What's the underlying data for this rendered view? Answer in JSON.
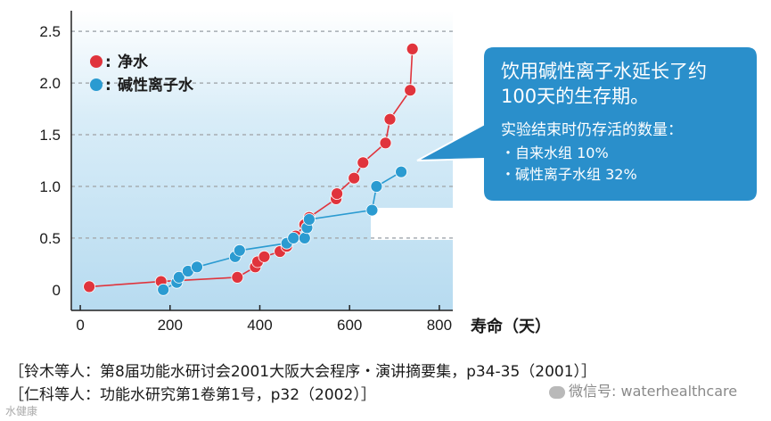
{
  "chart_data": {
    "type": "line",
    "x": {
      "ticks": [
        0,
        200,
        400,
        600,
        800
      ],
      "range": [
        -20,
        830
      ]
    },
    "y": {
      "ticks": [
        0,
        0.5,
        1.0,
        1.5,
        2.0,
        2.5
      ],
      "tick_labels": [
        "0",
        "0.5",
        "1.0",
        "1.5",
        "2.0",
        "2.5"
      ],
      "range": [
        -0.2,
        2.7
      ]
    },
    "xlabel": "寿命（天）",
    "grid": "horizontal-dashed",
    "series": [
      {
        "name": "净水",
        "color": "#e0343c",
        "points": [
          [
            20,
            0.03
          ],
          [
            180,
            0.08
          ],
          [
            350,
            0.12
          ],
          [
            390,
            0.22
          ],
          [
            395,
            0.27
          ],
          [
            410,
            0.32
          ],
          [
            445,
            0.37
          ],
          [
            460,
            0.42
          ],
          [
            480,
            0.52
          ],
          [
            500,
            0.63
          ],
          [
            510,
            0.7
          ],
          [
            570,
            0.88
          ],
          [
            572,
            0.93
          ],
          [
            610,
            1.08
          ],
          [
            630,
            1.23
          ],
          [
            680,
            1.42
          ],
          [
            690,
            1.65
          ],
          [
            735,
            1.93
          ],
          [
            740,
            2.33
          ]
        ]
      },
      {
        "name": "碱性离子水",
        "color": "#2b9bd1",
        "points": [
          [
            185,
            0.0
          ],
          [
            215,
            0.07
          ],
          [
            220,
            0.12
          ],
          [
            240,
            0.18
          ],
          [
            260,
            0.22
          ],
          [
            345,
            0.32
          ],
          [
            355,
            0.38
          ],
          [
            460,
            0.45
          ],
          [
            475,
            0.5
          ],
          [
            500,
            0.5
          ],
          [
            505,
            0.6
          ],
          [
            510,
            0.68
          ],
          [
            650,
            0.77
          ],
          [
            660,
            1.0
          ],
          [
            715,
            1.14
          ]
        ]
      }
    ]
  },
  "callout": {
    "headline_1": "饮用碱性离子水延长了约",
    "headline_2": "100天的生存期。",
    "sub_title": "实验结束时仍存活的数量：",
    "item_1": "・自来水组 10%",
    "item_2": "・碱性离子水组 32%",
    "bg_color": "#2a8fcb"
  },
  "references": {
    "line_1": "［铃木等人：第8届功能水研讨会2001大阪大会程序・演讲摘要集，p34-35（2001）］",
    "line_2": "［仁科等人：功能水研究第1卷第1号，p32（2002）］"
  },
  "watermark": {
    "label": "微信号: waterhealthcare",
    "corner": "水健康"
  }
}
